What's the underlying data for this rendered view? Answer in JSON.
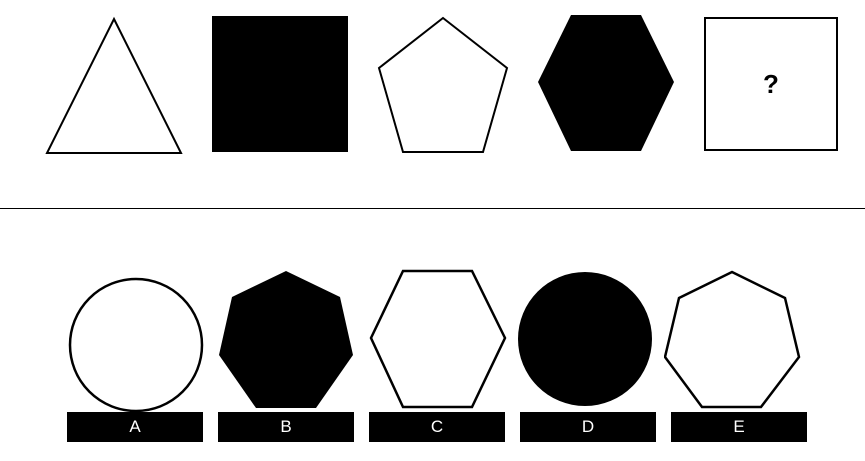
{
  "question": {
    "sequence": [
      {
        "name": "triangle",
        "fill": "#ffffff"
      },
      {
        "name": "square",
        "fill": "#000000"
      },
      {
        "name": "pentagon",
        "fill": "#ffffff"
      },
      {
        "name": "hexagon",
        "fill": "#000000"
      }
    ],
    "missing_symbol": "?"
  },
  "options": [
    {
      "label": "A",
      "shape": "circle",
      "fill": "#ffffff"
    },
    {
      "label": "B",
      "shape": "heptagon",
      "fill": "#000000"
    },
    {
      "label": "C",
      "shape": "hexagon",
      "fill": "#ffffff"
    },
    {
      "label": "D",
      "shape": "circle",
      "fill": "#000000"
    },
    {
      "label": "E",
      "shape": "heptagon",
      "fill": "#ffffff"
    }
  ],
  "colors": {
    "ink": "#000000",
    "paper": "#ffffff"
  }
}
